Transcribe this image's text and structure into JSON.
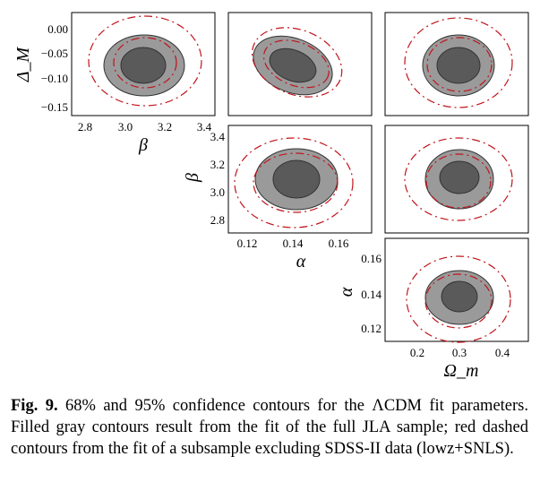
{
  "figure": {
    "panels": [
      {
        "id": "beta-deltaM",
        "xlabel": "β",
        "ylabel": "Δ_M",
        "xticks": [
          "2.8",
          "3.0",
          "3.2",
          "3.4"
        ],
        "yticks": [
          "0.00",
          "−0.05",
          "−0.10",
          "−0.15"
        ],
        "xlim": [
          2.72,
          3.42
        ],
        "ylim": [
          -0.17,
          0.03
        ]
      },
      {
        "id": "alpha-deltaM",
        "xlabel": "",
        "ylabel": "",
        "xticks": [],
        "yticks": [],
        "xlim": [
          0.11,
          0.175
        ],
        "ylim": [
          -0.17,
          0.03
        ]
      },
      {
        "id": "omega-deltaM",
        "xlabel": "",
        "ylabel": "",
        "xticks": [],
        "yticks": [],
        "xlim": [
          0.13,
          0.47
        ],
        "ylim": [
          -0.17,
          0.03
        ]
      },
      {
        "id": "alpha-beta",
        "xlabel": "α",
        "ylabel": "β",
        "xticks": [
          "0.12",
          "0.14",
          "0.16"
        ],
        "yticks": [
          "3.4",
          "3.2",
          "3.0",
          "2.8"
        ],
        "xlim": [
          0.11,
          0.175
        ],
        "ylim": [
          2.72,
          3.42
        ]
      },
      {
        "id": "omega-beta",
        "xlabel": "",
        "ylabel": "",
        "xticks": [],
        "yticks": [],
        "xlim": [
          0.13,
          0.47
        ],
        "ylim": [
          2.72,
          3.42
        ]
      },
      {
        "id": "omega-alpha",
        "xlabel": "Ω_m",
        "ylabel": "α",
        "xticks": [
          "0.2",
          "0.3",
          "0.4"
        ],
        "yticks": [
          "0.16",
          "0.14",
          "0.12"
        ],
        "xlim": [
          0.13,
          0.47
        ],
        "ylim": [
          0.11,
          0.175
        ]
      }
    ],
    "colors": {
      "outer_fill": "#9a9a9a",
      "inner_fill": "#5a5a5a",
      "contour_edge": "#333333",
      "red_contour": "#c0141c"
    }
  },
  "caption": {
    "label": "Fig. 9.",
    "text": " 68% and 95% confidence contours for the ΛCDM fit parameters. Filled gray contours result from the fit of the full JLA sample; red dashed contours from the fit of a subsample excluding SDSS-II data (lowz+SNLS)."
  }
}
